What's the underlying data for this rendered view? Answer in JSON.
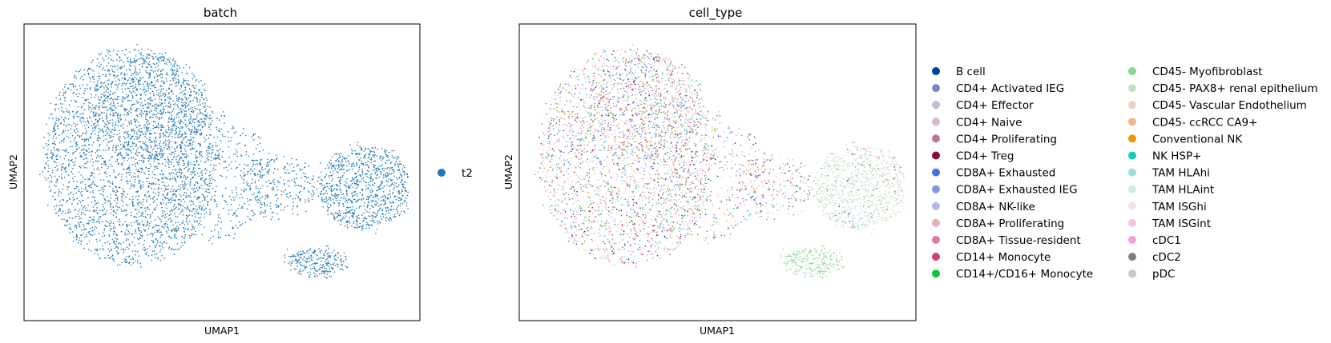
{
  "chart_data": [
    {
      "type": "scatter",
      "title": "batch",
      "xlabel": "UMAP1",
      "ylabel": "UMAP2",
      "grid": false,
      "legend": "right",
      "legend_entries": [
        {
          "label": "t2",
          "color": "#1f77b4"
        }
      ]
    },
    {
      "type": "scatter",
      "title": "cell_type",
      "xlabel": "UMAP1",
      "ylabel": "UMAP2",
      "grid": false,
      "legend": "right",
      "legend_columns": 2,
      "legend_entries": [
        {
          "label": "B cell",
          "color": "#023fa5"
        },
        {
          "label": "CD4+ Activated IEG",
          "color": "#7d87b9"
        },
        {
          "label": "CD4+ Effector",
          "color": "#bec1d4"
        },
        {
          "label": "CD4+ Naive",
          "color": "#d6bcc0"
        },
        {
          "label": "CD4+ Proliferating",
          "color": "#bb7784"
        },
        {
          "label": "CD4+ Treg",
          "color": "#8e063b"
        },
        {
          "label": "CD8A+ Exhausted",
          "color": "#4a6fe3"
        },
        {
          "label": "CD8A+ Exhausted IEG",
          "color": "#8595e1"
        },
        {
          "label": "CD8A+ NK-like",
          "color": "#b5bbe3"
        },
        {
          "label": "CD8A+ Proliferating",
          "color": "#e6afb9"
        },
        {
          "label": "CD8A+ Tissue-resident",
          "color": "#e07b91"
        },
        {
          "label": "CD14+ Monocyte",
          "color": "#d33f6a"
        },
        {
          "label": "CD14+/CD16+ Monocyte",
          "color": "#11c638"
        },
        {
          "label": "CD45- Myofibroblast",
          "color": "#8dd593"
        },
        {
          "label": "CD45- PAX8+ renal epithelium",
          "color": "#c6dec7"
        },
        {
          "label": "CD45- Vascular Endothelium",
          "color": "#ead3c6"
        },
        {
          "label": "CD45- ccRCC CA9+",
          "color": "#f0b98d"
        },
        {
          "label": "Conventional NK",
          "color": "#ef9708"
        },
        {
          "label": "NK HSP+",
          "color": "#0fcfc0"
        },
        {
          "label": "TAM HLAhi",
          "color": "#9cded6"
        },
        {
          "label": "TAM HLAint",
          "color": "#d5eae7"
        },
        {
          "label": "TAM ISGhi",
          "color": "#f3e1eb"
        },
        {
          "label": "TAM ISGint",
          "color": "#f6c4e1"
        },
        {
          "label": "cDC1",
          "color": "#f79cd4"
        },
        {
          "label": "cDC2",
          "color": "#7f7f7f"
        },
        {
          "label": "pDC",
          "color": "#c7c7c7"
        }
      ]
    }
  ]
}
